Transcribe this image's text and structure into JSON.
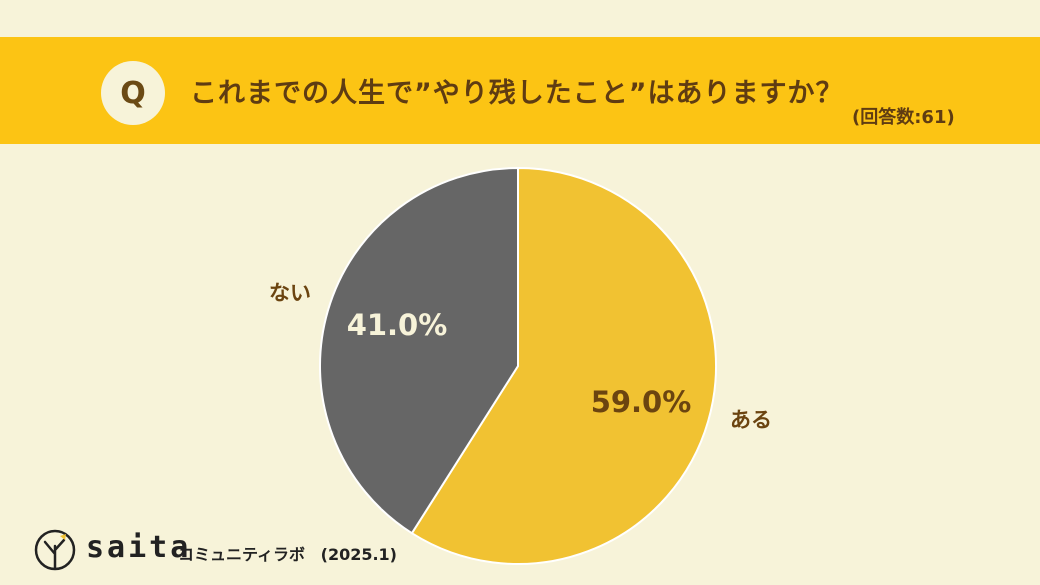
{
  "header": {
    "badge": "Q",
    "question": "これまでの人生で”やり残したこと”はありますか？",
    "respondents": "(回答数:61)"
  },
  "footer": {
    "brand": "saita",
    "sub": "コミュニティラボ",
    "date": "(2025.1)"
  },
  "colors": {
    "background": "#f7f3d9",
    "banner": "#fcc414",
    "yes_slice": "#f1c232",
    "no_slice": "#666666",
    "label_dark": "#6b4410"
  },
  "chart_data": {
    "type": "pie",
    "categories": [
      "ある",
      "ない"
    ],
    "values": [
      59.0,
      41.0
    ],
    "value_labels": [
      "59.0%",
      "41.0%"
    ],
    "start_angle_deg": 0,
    "direction": "clockwise"
  }
}
